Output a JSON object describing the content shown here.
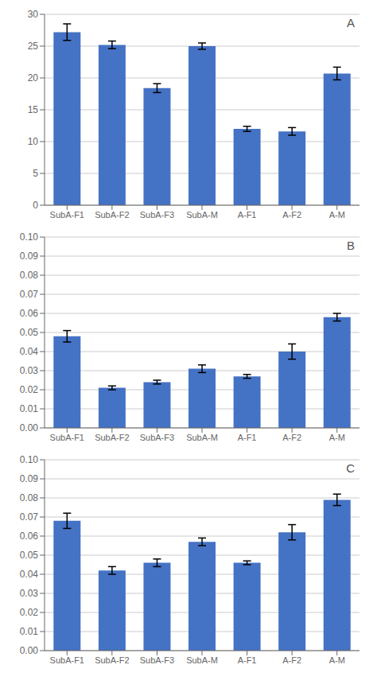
{
  "chart_data": [
    {
      "type": "bar",
      "annotations": [
        "A"
      ],
      "categories": [
        "SubA-F1",
        "SubA-F2",
        "SubA-F3",
        "SubA-M",
        "A-F1",
        "A-F2",
        "A-M"
      ],
      "values": [
        27.2,
        25.2,
        18.4,
        25.0,
        12.0,
        11.6,
        20.7
      ],
      "errors": [
        1.3,
        0.6,
        0.7,
        0.5,
        0.4,
        0.6,
        1.0
      ],
      "color": "#4472C4",
      "ylim": [
        0,
        30
      ],
      "yticks": [
        0,
        5,
        10,
        15,
        20,
        25,
        30
      ],
      "grid": true
    },
    {
      "type": "bar",
      "annotations": [
        "B"
      ],
      "categories": [
        "SubA-F1",
        "SubA-F2",
        "SubA-F3",
        "SubA-M",
        "A-F1",
        "A-F2",
        "A-M"
      ],
      "values": [
        0.048,
        0.021,
        0.024,
        0.031,
        0.027,
        0.04,
        0.058
      ],
      "errors": [
        0.003,
        0.001,
        0.001,
        0.002,
        0.001,
        0.004,
        0.002
      ],
      "color": "#4472C4",
      "ylim": [
        0,
        0.1
      ],
      "yticks": [
        {
          "value": 0,
          "label": "0.00"
        },
        0.01,
        0.02,
        0.03,
        0.04,
        0.05,
        0.06,
        0.07,
        0.08,
        0.09,
        {
          "value": 0.1,
          "label": "0.10"
        }
      ],
      "grid": true
    },
    {
      "type": "bar",
      "annotations": [
        "C"
      ],
      "categories": [
        "SubA-F1",
        "SubA-F2",
        "SubA-F3",
        "SubA-M",
        "A-F1",
        "A-F2",
        "A-M"
      ],
      "values": [
        0.068,
        0.042,
        0.046,
        0.057,
        0.046,
        0.062,
        0.079
      ],
      "errors": [
        0.004,
        0.002,
        0.002,
        0.002,
        0.001,
        0.004,
        0.003
      ],
      "color": "#4472C4",
      "ylim": [
        0,
        0.1
      ],
      "yticks": [
        {
          "value": 0,
          "label": "0.00"
        },
        0.01,
        0.02,
        0.03,
        0.04,
        0.05,
        0.06,
        0.07,
        0.08,
        0.09,
        {
          "value": 0.1,
          "label": "0.10"
        }
      ],
      "grid": true
    }
  ]
}
